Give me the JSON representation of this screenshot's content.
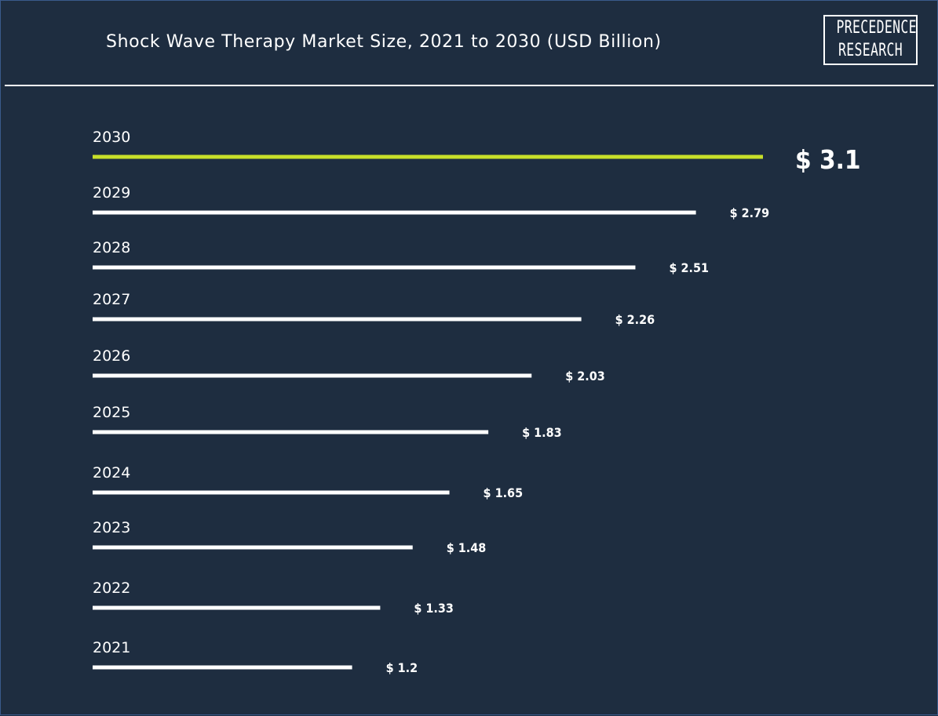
{
  "title": "Shock Wave Therapy Market Size, 2021 to 2030 (USD Billion)",
  "logo": {
    "line1": "PRECEDENCE",
    "line2": "RESEARCH"
  },
  "colors": {
    "background": "#1e2d40",
    "bar": "#ffffff",
    "highlight": "#c8e02a"
  },
  "chart_data": {
    "type": "bar",
    "orientation": "horizontal",
    "title": "Shock Wave Therapy Market Size, 2021 to 2030 (USD Billion)",
    "categories": [
      "2030",
      "2029",
      "2028",
      "2027",
      "2026",
      "2025",
      "2024",
      "2023",
      "2022",
      "2021"
    ],
    "values": [
      3.1,
      2.79,
      2.51,
      2.26,
      2.03,
      1.83,
      1.65,
      1.48,
      1.33,
      1.2
    ],
    "value_labels": [
      "$ 3.1",
      "$ 2.79",
      "$ 2.51",
      "$ 2.26",
      "$ 2.03",
      "$ 1.83",
      "$ 1.65",
      "$ 1.48",
      "$ 1.33",
      "$ 1.2"
    ],
    "highlighted_category": "2030",
    "xlim": [
      0,
      3.1
    ],
    "grid": false,
    "legend": "none"
  }
}
